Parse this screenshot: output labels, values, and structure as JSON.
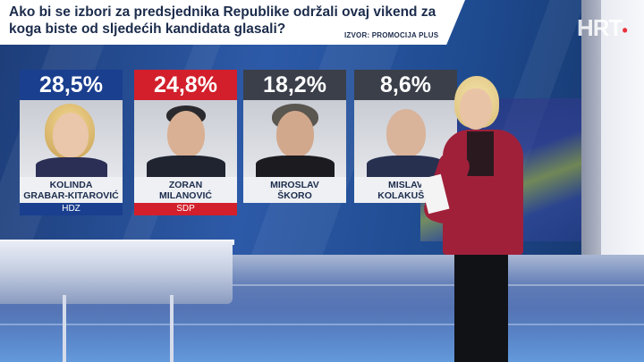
{
  "broadcaster": {
    "logo": "HRT",
    "logo_dot": "•"
  },
  "question": {
    "line1": "Ako bi se izbori za predsjednika Republike održali ovaj vikend za",
    "line2": "koga biste od sljedećih kandidata glasali?",
    "source": "IZVOR: PROMOCIJA PLUS"
  },
  "candidates": [
    {
      "percent": "28,5%",
      "first": "KOLINDA",
      "last": "GRABAR-KITAROVIĆ",
      "party": "HDZ",
      "color": "#1b3f8f"
    },
    {
      "percent": "24,8%",
      "first": "ZORAN",
      "last": "MILANOVIĆ",
      "party": "SDP",
      "color": "#d21f2b"
    },
    {
      "percent": "18,2%",
      "first": "MIROSLAV",
      "last": "ŠKORO",
      "party": "",
      "color": "#3a3f4a"
    },
    {
      "percent": "8,6%",
      "first": "MISLAV",
      "last": "KOLAKUŠIĆ",
      "party": "",
      "color": "#3a3f4a"
    }
  ]
}
